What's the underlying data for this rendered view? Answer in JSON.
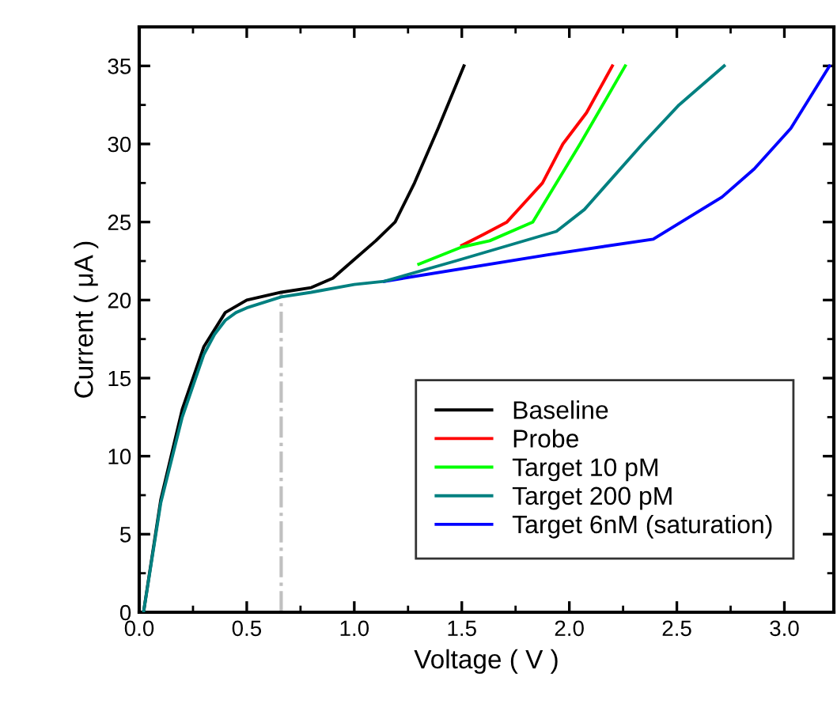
{
  "chart_data": {
    "type": "line",
    "xlabel": "Voltage ( V )",
    "ylabel": "Current ( μA )",
    "xlim": [
      0,
      3.23
    ],
    "ylim": [
      0,
      37.5
    ],
    "xticks": [
      {
        "value": 0,
        "label": "0.0"
      },
      0.5,
      {
        "value": 1,
        "label": "1.0"
      },
      1.5,
      {
        "value": 2,
        "label": "2.0"
      },
      2.5,
      {
        "value": 3,
        "label": "3.0"
      }
    ],
    "yticks": [
      0,
      5,
      10,
      15,
      20,
      25,
      30,
      35
    ],
    "grid": false,
    "legend": "bottom right",
    "line_style": "solid",
    "marker": "none",
    "ref_lines": [
      {
        "axis": "x",
        "value": 0.66,
        "label": null,
        "color": "#c0c0c0",
        "line_style": "dashdot"
      }
    ],
    "series": [
      {
        "name": "Baseline",
        "color": "#000000",
        "x": [
          0.02,
          0.1,
          0.2,
          0.3,
          0.4,
          0.5,
          0.66,
          0.8,
          0.9,
          1.0,
          1.1,
          1.19,
          1.28,
          1.39,
          1.51
        ],
        "values": [
          0,
          7.2,
          13,
          17,
          19.2,
          20,
          20.5,
          20.8,
          21.4,
          22.6,
          23.8,
          25,
          27.5,
          31,
          35
        ]
      },
      {
        "name": "Probe",
        "color": "#ff0000",
        "x": [
          1.5,
          1.6,
          1.71,
          1.875,
          1.97,
          2.08,
          2.2
        ],
        "values": [
          23.5,
          24.2,
          25,
          27.5,
          30,
          32,
          35
        ]
      },
      {
        "name": "Target 10 pM",
        "color": "#00ff00",
        "x": [
          1.3,
          1.5,
          1.63,
          1.83,
          2.05,
          2.26
        ],
        "values": [
          22.3,
          23.4,
          23.8,
          25,
          30,
          35
        ]
      },
      {
        "name": "Target 200 pM",
        "color": "#008080",
        "x": [
          0.02,
          0.1,
          0.2,
          0.3,
          0.35,
          0.4,
          0.45,
          0.5,
          0.66,
          0.8,
          1.0,
          1.14,
          1.47,
          1.94,
          2.07,
          2.34,
          2.51,
          2.72
        ],
        "values": [
          0,
          7,
          12.5,
          16.5,
          17.8,
          18.7,
          19.2,
          19.5,
          20.2,
          20.5,
          21,
          21.2,
          22.5,
          24.4,
          25.8,
          30,
          32.5,
          35
        ]
      },
      {
        "name": "Target 6nM (saturation)",
        "color": "#0000ff",
        "x": [
          1.14,
          1.9,
          2.39,
          2.71,
          2.86,
          3.03,
          3.21
        ],
        "values": [
          21.2,
          22.9,
          23.9,
          26.6,
          28.4,
          31,
          35
        ]
      }
    ]
  }
}
